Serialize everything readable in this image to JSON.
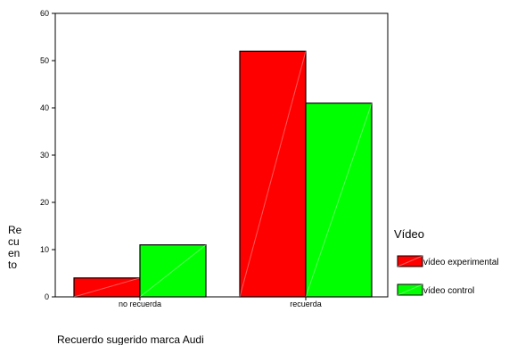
{
  "chart_data": {
    "type": "bar",
    "xlabel": "Recuerdo sugerido marca Audi",
    "ylabel_lines": [
      "Re",
      "cu",
      "en",
      "to"
    ],
    "categories": [
      "no recuerda",
      "recuerda"
    ],
    "ylim": [
      0,
      60
    ],
    "yticks": [
      0,
      10,
      20,
      30,
      40,
      50,
      60
    ],
    "grid": false,
    "legend": {
      "title": "Vídeo",
      "placement": "right"
    },
    "series": [
      {
        "name": "vídeo experimental",
        "color": "#ff0000",
        "values": [
          4,
          52
        ]
      },
      {
        "name": "vídeo control",
        "color": "#00ff00",
        "values": [
          11,
          41
        ]
      }
    ]
  }
}
